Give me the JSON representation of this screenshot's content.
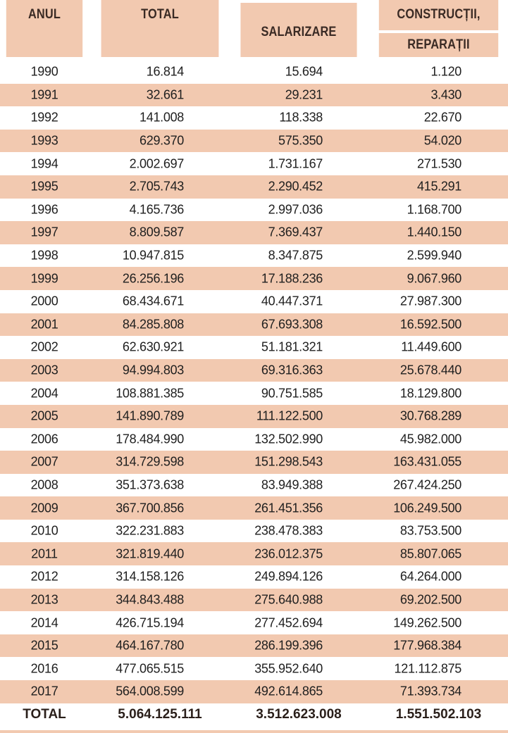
{
  "headers": {
    "year": "ANUL",
    "total": "TOTAL",
    "salaries": "SALARIZARE",
    "constructions": "CONSTRUCȚII,",
    "repairs": "REPARAȚII"
  },
  "rows": [
    {
      "year": "1990",
      "total": "16.814",
      "salaries": "15.694",
      "constructions": "1.120"
    },
    {
      "year": "1991",
      "total": "32.661",
      "salaries": "29.231",
      "constructions": "3.430"
    },
    {
      "year": "1992",
      "total": "141.008",
      "salaries": "118.338",
      "constructions": "22.670"
    },
    {
      "year": "1993",
      "total": "629.370",
      "salaries": "575.350",
      "constructions": "54.020"
    },
    {
      "year": "1994",
      "total": "2.002.697",
      "salaries": "1.731.167",
      "constructions": "271.530"
    },
    {
      "year": "1995",
      "total": "2.705.743",
      "salaries": "2.290.452",
      "constructions": "415.291"
    },
    {
      "year": "1996",
      "total": "4.165.736",
      "salaries": "2.997.036",
      "constructions": "1.168.700"
    },
    {
      "year": "1997",
      "total": "8.809.587",
      "salaries": "7.369.437",
      "constructions": "1.440.150"
    },
    {
      "year": "1998",
      "total": "10.947.815",
      "salaries": "8.347.875",
      "constructions": "2.599.940"
    },
    {
      "year": "1999",
      "total": "26.256.196",
      "salaries": "17.188.236",
      "constructions": "9.067.960"
    },
    {
      "year": "2000",
      "total": "68.434.671",
      "salaries": "40.447.371",
      "constructions": "27.987.300"
    },
    {
      "year": "2001",
      "total": "84.285.808",
      "salaries": "67.693.308",
      "constructions": "16.592.500"
    },
    {
      "year": "2002",
      "total": "62.630.921",
      "salaries": "51.181.321",
      "constructions": "11.449.600"
    },
    {
      "year": "2003",
      "total": "94.994.803",
      "salaries": "69.316.363",
      "constructions": "25.678.440"
    },
    {
      "year": "2004",
      "total": "108.881.385",
      "salaries": "90.751.585",
      "constructions": "18.129.800"
    },
    {
      "year": "2005",
      "total": "141.890.789",
      "salaries": "111.122.500",
      "constructions": "30.768.289"
    },
    {
      "year": "2006",
      "total": "178.484.990",
      "salaries": "132.502.990",
      "constructions": "45.982.000"
    },
    {
      "year": "2007",
      "total": "314.729.598",
      "salaries": "151.298.543",
      "constructions": "163.431.055"
    },
    {
      "year": "2008",
      "total": "351.373.638",
      "salaries": "83.949.388",
      "constructions": "267.424.250"
    },
    {
      "year": "2009",
      "total": "367.700.856",
      "salaries": "261.451.356",
      "constructions": "106.249.500"
    },
    {
      "year": "2010",
      "total": "322.231.883",
      "salaries": "238.478.383",
      "constructions": "83.753.500"
    },
    {
      "year": "2011",
      "total": "321.819.440",
      "salaries": "236.012.375",
      "constructions": "85.807.065"
    },
    {
      "year": "2012",
      "total": "314.158.126",
      "salaries": "249.894.126",
      "constructions": "64.264.000"
    },
    {
      "year": "2013",
      "total": "344.843.488",
      "salaries": "275.640.988",
      "constructions": "69.202.500"
    },
    {
      "year": "2014",
      "total": "426.715.194",
      "salaries": "277.452.694",
      "constructions": "149.262.500"
    },
    {
      "year": "2015",
      "total": "464.167.780",
      "salaries": "286.199.396",
      "constructions": "177.968.384"
    },
    {
      "year": "2016",
      "total": "477.065.515",
      "salaries": "355.952.640",
      "constructions": "121.112.875"
    },
    {
      "year": "2017",
      "total": "564.008.599",
      "salaries": "492.614.865",
      "constructions": "71.393.734"
    }
  ],
  "totals": {
    "label": "TOTAL",
    "total": "5.064.125.111",
    "salaries": "3.512.623.008",
    "constructions": "1.551.502.103"
  },
  "colors": {
    "accent": "#f2c9b0",
    "text": "#1f1f1f"
  }
}
